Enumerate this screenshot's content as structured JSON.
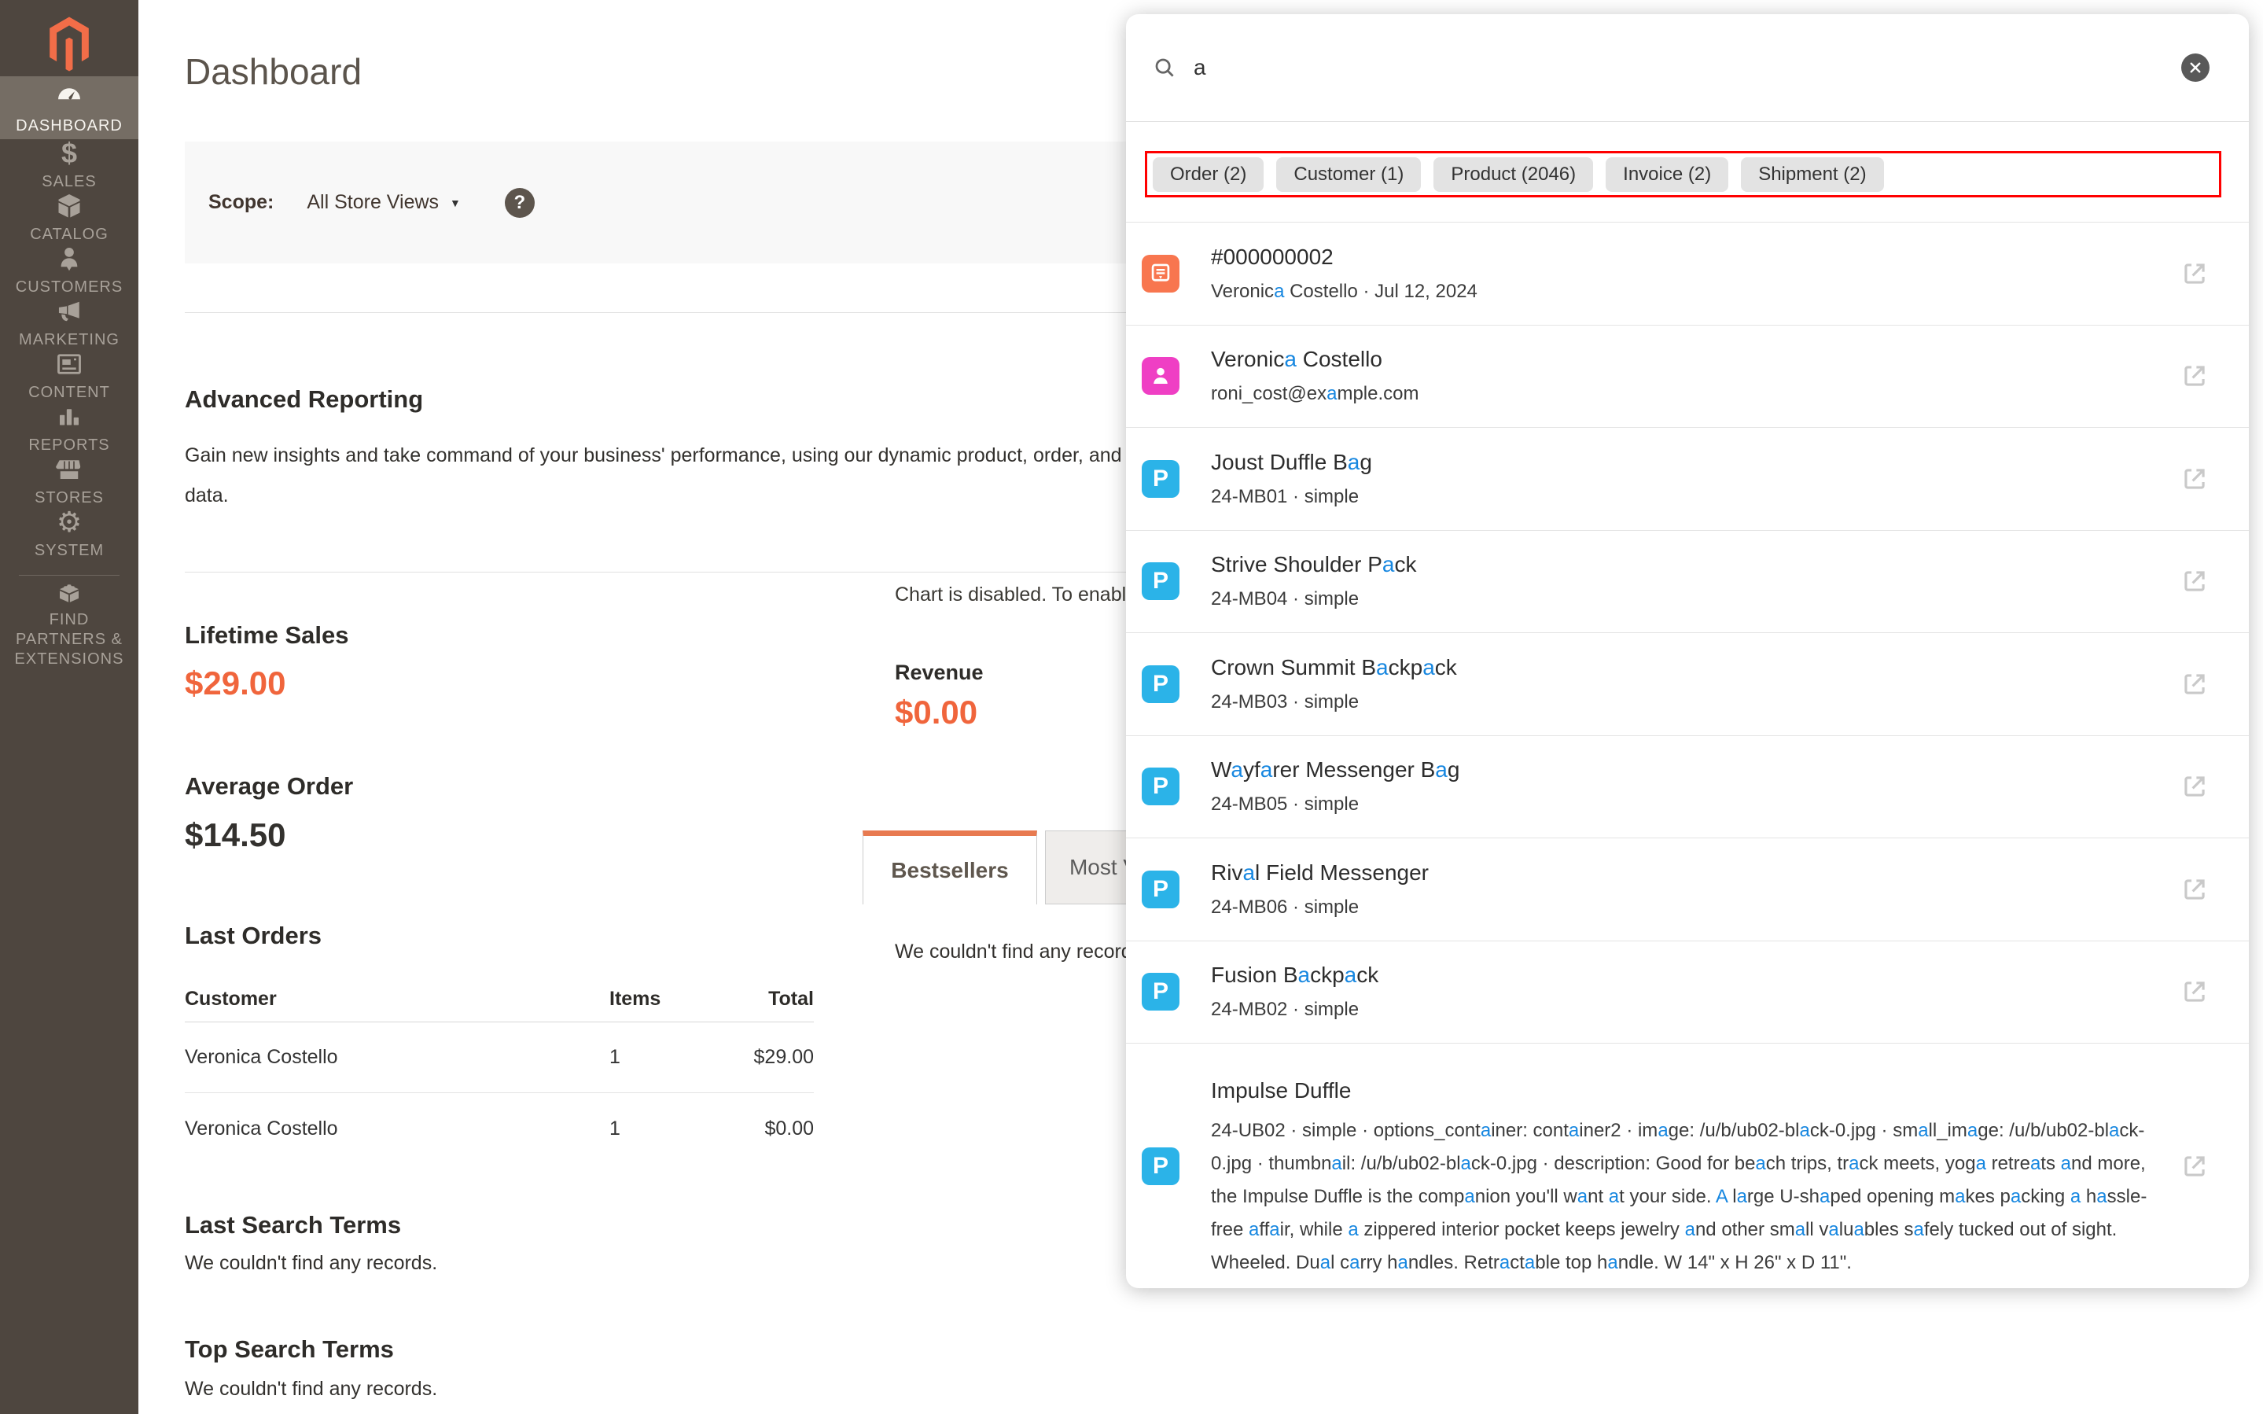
{
  "colors": {
    "logo_orange": "#F26D48",
    "accent_orange": "#F0653C",
    "tab_accent": "#E87A50",
    "highlight_blue": "#1787E0",
    "annotation_red": "#FF0000",
    "order_icon_bg": "#F8764F",
    "customer_icon_bg": "#EF3FC4",
    "product_icon_bg": "#2BB3E8",
    "sidebar_bg": "#4E463F",
    "sidebar_active_bg": "#756D64"
  },
  "sidebar": {
    "logo_icon": "magento-logo-icon",
    "items": [
      {
        "id": "dashboard",
        "label": "DASHBOARD",
        "icon": "gauge-icon",
        "active": true
      },
      {
        "id": "sales",
        "label": "SALES",
        "icon": "dollar-icon",
        "active": false
      },
      {
        "id": "catalog",
        "label": "CATALOG",
        "icon": "box-icon",
        "active": false
      },
      {
        "id": "customers",
        "label": "CUSTOMERS",
        "icon": "person-icon",
        "active": false
      },
      {
        "id": "marketing",
        "label": "MARKETING",
        "icon": "megaphone-icon",
        "active": false
      },
      {
        "id": "content",
        "label": "CONTENT",
        "icon": "layout-icon",
        "active": false
      },
      {
        "id": "reports",
        "label": "REPORTS",
        "icon": "bar-chart-icon",
        "active": false
      },
      {
        "id": "stores",
        "label": "STORES",
        "icon": "storefront-icon",
        "active": false
      },
      {
        "id": "system",
        "label": "SYSTEM",
        "icon": "gear-icon",
        "active": false
      },
      {
        "id": "find-partners",
        "label": "FIND PARTNERS & EXTENSIONS",
        "icon": "extensions-icon",
        "active": false,
        "divider_before": true
      }
    ]
  },
  "page": {
    "title": "Dashboard",
    "scope_label": "Scope:",
    "scope_value": "All Store Views",
    "scope_caret": "▼",
    "help_icon": "question-icon",
    "help_glyph": "?"
  },
  "advanced_reporting": {
    "title": "Advanced Reporting",
    "description_line1": "Gain new insights and take command of your business' performance, using our dynamic product, order, and customer reports tailored to your customer",
    "description_line2": "data."
  },
  "metrics": {
    "lifetime_sales_label": "Lifetime Sales",
    "lifetime_sales_value": "$29.00",
    "average_order_label": "Average Order",
    "average_order_value": "$14.50"
  },
  "last_orders": {
    "title": "Last Orders",
    "columns": [
      "Customer",
      "Items",
      "Total"
    ],
    "rows": [
      [
        "Veronica Costello",
        "1",
        "$29.00"
      ],
      [
        "Veronica Costello",
        "1",
        "$0.00"
      ]
    ]
  },
  "last_search_terms": {
    "title": "Last Search Terms",
    "empty": "We couldn't find any records."
  },
  "top_search_terms": {
    "title": "Top Search Terms",
    "empty": "We couldn't find any records."
  },
  "chart": {
    "disabled_notice": "Chart is disabled. To enable the chart, click here.",
    "revenue_label": "Revenue",
    "revenue_value": "$0.00"
  },
  "tabs": {
    "active_label": "Bestsellers",
    "inactive_label": "Most Viewed Products",
    "empty": "We couldn't find any records."
  },
  "search": {
    "query": "a",
    "search_icon": "search-icon",
    "close_icon": "close-icon",
    "chips": [
      {
        "label": "Order (2)"
      },
      {
        "label": "Customer (1)"
      },
      {
        "label": "Product (2046)"
      },
      {
        "label": "Invoice (2)"
      },
      {
        "label": "Shipment (2)"
      }
    ],
    "results": [
      {
        "type": "order",
        "icon": "order-icon",
        "title": "#000000002",
        "subtitle": "Veronica Costello · Jul 12, 2024"
      },
      {
        "type": "customer",
        "icon": "customer-icon",
        "title": "Veronica Costello",
        "subtitle": "roni_cost@example.com"
      },
      {
        "type": "product",
        "icon": "product-icon",
        "title": "Joust Duffle Bag",
        "subtitle": "24-MB01 · simple"
      },
      {
        "type": "product",
        "icon": "product-icon",
        "title": "Strive Shoulder Pack",
        "subtitle": "24-MB04 · simple"
      },
      {
        "type": "product",
        "icon": "product-icon",
        "title": "Crown Summit Backpack",
        "subtitle": "24-MB03 · simple"
      },
      {
        "type": "product",
        "icon": "product-icon",
        "title": "Wayfarer Messenger Bag",
        "subtitle": "24-MB05 · simple"
      },
      {
        "type": "product",
        "icon": "product-icon",
        "title": "Rival Field Messenger",
        "subtitle": "24-MB06 · simple"
      },
      {
        "type": "product",
        "icon": "product-icon",
        "title": "Fusion Backpack",
        "subtitle": "24-MB02 · simple"
      },
      {
        "type": "product",
        "icon": "product-icon",
        "title": "Impulse Duffle",
        "subtitle": "24-UB02 · simple · options_container: container2 · image: /u/b/ub02-black-0.jpg · small_image: /u/b/ub02-black-0.jpg · thumbnail: /u/b/ub02-black-0.jpg · description: Good for beach trips, track meets, yoga retreats and more, the Impulse Duffle is the companion you'll want at your side. A large U-shaped opening makes packing a hassle-free affair, while a zippered interior pocket keeps jewelry and other small valuables safely tucked out of sight. Wheeled. Dual carry handles. Retractable top handle. W 14\" x H 26\" x D 11\".",
        "tall": true
      }
    ]
  }
}
